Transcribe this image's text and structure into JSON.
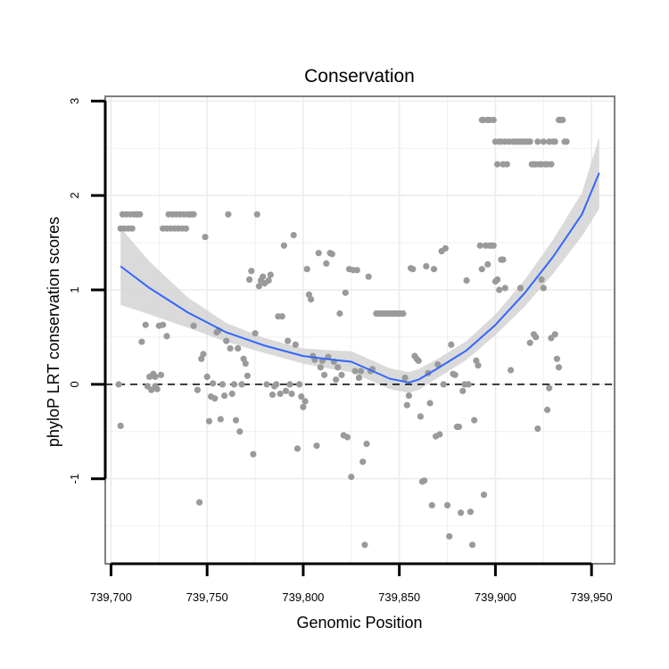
{
  "chart_data": {
    "type": "scatter",
    "title": "Conservation",
    "xlabel": "Genomic Position",
    "ylabel": "phyloP LRT conservation scores",
    "xlim": [
      739697,
      739962
    ],
    "ylim": [
      -1.9,
      3.05
    ],
    "x_ticks": [
      739700,
      739750,
      739800,
      739850,
      739900,
      739950
    ],
    "x_tick_labels": [
      "739,700",
      "739,750",
      "739,800",
      "739,850",
      "739,900",
      "739,950"
    ],
    "y_ticks": [
      -1,
      0,
      1,
      2,
      3
    ],
    "y_tick_labels": [
      "-1",
      "0",
      "1",
      "2",
      "3"
    ],
    "grid": true,
    "reference_line": {
      "y": 0,
      "style": "dashed"
    },
    "colors": {
      "points": "#9a9a9a",
      "smooth": "#3366ff",
      "band": "#d4d4d4",
      "grid": "#ececec",
      "border": "#7f7f7f"
    },
    "points": [
      [
        739704,
        0.0
      ],
      [
        739705,
        -0.44
      ],
      [
        739705,
        1.65
      ],
      [
        739706,
        1.8
      ],
      [
        739707,
        1.65
      ],
      [
        739708,
        1.8
      ],
      [
        739709,
        1.65
      ],
      [
        739710,
        1.8
      ],
      [
        739711,
        1.65
      ],
      [
        739712,
        1.8
      ],
      [
        739713,
        1.8
      ],
      [
        739714,
        1.8
      ],
      [
        739715,
        1.8
      ],
      [
        739716,
        0.45
      ],
      [
        739718,
        0.63
      ],
      [
        739719,
        -0.02
      ],
      [
        739720,
        0.08
      ],
      [
        739721,
        -0.06
      ],
      [
        739722,
        0.11
      ],
      [
        739723,
        0.08
      ],
      [
        739723,
        -0.02
      ],
      [
        739724,
        -0.05
      ],
      [
        739725,
        0.62
      ],
      [
        739726,
        0.1
      ],
      [
        739727,
        0.63
      ],
      [
        739729,
        0.51
      ],
      [
        739727,
        1.65
      ],
      [
        739729,
        1.65
      ],
      [
        739730,
        1.8
      ],
      [
        739731,
        1.65
      ],
      [
        739732,
        1.8
      ],
      [
        739733,
        1.65
      ],
      [
        739734,
        1.8
      ],
      [
        739735,
        1.65
      ],
      [
        739736,
        1.8
      ],
      [
        739737,
        1.65
      ],
      [
        739738,
        1.8
      ],
      [
        739739,
        1.65
      ],
      [
        739740,
        1.8
      ],
      [
        739741,
        1.8
      ],
      [
        739742,
        1.8
      ],
      [
        739743,
        1.8
      ],
      [
        739743,
        0.62
      ],
      [
        739745,
        -0.06
      ],
      [
        739746,
        -1.25
      ],
      [
        739747,
        0.27
      ],
      [
        739748,
        0.32
      ],
      [
        739749,
        1.56
      ],
      [
        739750,
        0.08
      ],
      [
        739751,
        -0.39
      ],
      [
        739752,
        -0.13
      ],
      [
        739753,
        0.01
      ],
      [
        739754,
        -0.15
      ],
      [
        739755,
        0.55
      ],
      [
        739756,
        0.57
      ],
      [
        739757,
        -0.37
      ],
      [
        739758,
        0.0
      ],
      [
        739759,
        -0.12
      ],
      [
        739760,
        0.46
      ],
      [
        739761,
        1.8
      ],
      [
        739762,
        0.38
      ],
      [
        739763,
        -0.1
      ],
      [
        739764,
        0.0
      ],
      [
        739765,
        -0.38
      ],
      [
        739766,
        0.38
      ],
      [
        739767,
        -0.5
      ],
      [
        739768,
        0.0
      ],
      [
        739769,
        0.27
      ],
      [
        739770,
        0.22
      ],
      [
        739771,
        0.09
      ],
      [
        739772,
        1.11
      ],
      [
        739773,
        1.2
      ],
      [
        739774,
        -0.74
      ],
      [
        739775,
        0.54
      ],
      [
        739776,
        1.8
      ],
      [
        739777,
        1.04
      ],
      [
        739778,
        1.1
      ],
      [
        739779,
        1.14
      ],
      [
        739780,
        1.07
      ],
      [
        739781,
        0.0
      ],
      [
        739782,
        1.1
      ],
      [
        739783,
        1.16
      ],
      [
        739784,
        -0.11
      ],
      [
        739785,
        -0.02
      ],
      [
        739786,
        0.0
      ],
      [
        739787,
        0.72
      ],
      [
        739788,
        -0.1
      ],
      [
        739789,
        0.72
      ],
      [
        739790,
        1.47
      ],
      [
        739791,
        -0.07
      ],
      [
        739792,
        0.46
      ],
      [
        739793,
        0.0
      ],
      [
        739794,
        -0.1
      ],
      [
        739795,
        1.58
      ],
      [
        739796,
        0.42
      ],
      [
        739797,
        -0.68
      ],
      [
        739798,
        0.0
      ],
      [
        739799,
        -0.13
      ],
      [
        739800,
        -0.24
      ],
      [
        739801,
        -0.18
      ],
      [
        739802,
        1.22
      ],
      [
        739803,
        0.95
      ],
      [
        739804,
        0.9
      ],
      [
        739805,
        0.3
      ],
      [
        739806,
        0.26
      ],
      [
        739807,
        -0.65
      ],
      [
        739808,
        1.39
      ],
      [
        739809,
        0.18
      ],
      [
        739810,
        0.25
      ],
      [
        739811,
        0.1
      ],
      [
        739812,
        1.28
      ],
      [
        739813,
        0.29
      ],
      [
        739814,
        1.39
      ],
      [
        739815,
        1.38
      ],
      [
        739816,
        0.24
      ],
      [
        739817,
        0.05
      ],
      [
        739818,
        0.18
      ],
      [
        739819,
        0.75
      ],
      [
        739820,
        0.1
      ],
      [
        739821,
        -0.54
      ],
      [
        739822,
        0.97
      ],
      [
        739823,
        -0.56
      ],
      [
        739824,
        1.22
      ],
      [
        739825,
        -0.98
      ],
      [
        739826,
        1.21
      ],
      [
        739827,
        0.14
      ],
      [
        739828,
        1.21
      ],
      [
        739829,
        0.07
      ],
      [
        739830,
        0.14
      ],
      [
        739831,
        -0.82
      ],
      [
        739832,
        -1.7
      ],
      [
        739833,
        -0.63
      ],
      [
        739834,
        1.14
      ],
      [
        739835,
        0.14
      ],
      [
        739836,
        0.16
      ],
      [
        739838,
        0.75
      ],
      [
        739839,
        0.75
      ],
      [
        739840,
        0.75
      ],
      [
        739841,
        0.75
      ],
      [
        739842,
        0.75
      ],
      [
        739843,
        0.75
      ],
      [
        739844,
        0.75
      ],
      [
        739845,
        0.75
      ],
      [
        739846,
        0.75
      ],
      [
        739847,
        0.75
      ],
      [
        739848,
        0.75
      ],
      [
        739849,
        0.75
      ],
      [
        739850,
        0.75
      ],
      [
        739851,
        0.75
      ],
      [
        739852,
        0.75
      ],
      [
        739853,
        0.07
      ],
      [
        739854,
        -0.22
      ],
      [
        739855,
        -0.12
      ],
      [
        739856,
        1.23
      ],
      [
        739857,
        1.22
      ],
      [
        739858,
        0.3
      ],
      [
        739859,
        0.27
      ],
      [
        739860,
        0.25
      ],
      [
        739861,
        -0.34
      ],
      [
        739862,
        -1.03
      ],
      [
        739863,
        -1.02
      ],
      [
        739864,
        1.25
      ],
      [
        739865,
        0.12
      ],
      [
        739866,
        -0.2
      ],
      [
        739867,
        -1.28
      ],
      [
        739868,
        1.22
      ],
      [
        739869,
        -0.55
      ],
      [
        739870,
        0.21
      ],
      [
        739871,
        -0.53
      ],
      [
        739872,
        1.41
      ],
      [
        739873,
        0.0
      ],
      [
        739874,
        1.44
      ],
      [
        739875,
        -1.28
      ],
      [
        739876,
        -1.61
      ],
      [
        739877,
        0.42
      ],
      [
        739878,
        0.11
      ],
      [
        739879,
        0.1
      ],
      [
        739880,
        -0.45
      ],
      [
        739881,
        -0.45
      ],
      [
        739882,
        -1.36
      ],
      [
        739883,
        -0.07
      ],
      [
        739884,
        0.0
      ],
      [
        739885,
        1.1
      ],
      [
        739886,
        0.0
      ],
      [
        739887,
        -1.35
      ],
      [
        739888,
        -1.7
      ],
      [
        739889,
        -0.38
      ],
      [
        739890,
        0.25
      ],
      [
        739891,
        0.2
      ],
      [
        739892,
        1.47
      ],
      [
        739893,
        1.22
      ],
      [
        739894,
        -1.17
      ],
      [
        739895,
        1.47
      ],
      [
        739896,
        1.27
      ],
      [
        739897,
        1.47
      ],
      [
        739898,
        1.47
      ],
      [
        739899,
        1.47
      ],
      [
        739900,
        1.09
      ],
      [
        739901,
        1.11
      ],
      [
        739902,
        1.0
      ],
      [
        739903,
        1.32
      ],
      [
        739904,
        1.32
      ],
      [
        739905,
        1.02
      ],
      [
        739893,
        2.8
      ],
      [
        739894,
        2.8
      ],
      [
        739896,
        2.8
      ],
      [
        739897,
        2.8
      ],
      [
        739899,
        2.8
      ],
      [
        739900,
        2.57
      ],
      [
        739901,
        2.33
      ],
      [
        739902,
        2.57
      ],
      [
        739903,
        2.57
      ],
      [
        739904,
        2.33
      ],
      [
        739905,
        2.57
      ],
      [
        739906,
        2.33
      ],
      [
        739907,
        2.57
      ],
      [
        739909,
        2.57
      ],
      [
        739910,
        2.57
      ],
      [
        739911,
        2.57
      ],
      [
        739912,
        2.57
      ],
      [
        739913,
        2.57
      ],
      [
        739914,
        2.57
      ],
      [
        739915,
        2.57
      ],
      [
        739916,
        2.57
      ],
      [
        739917,
        2.57
      ],
      [
        739918,
        2.57
      ],
      [
        739919,
        2.33
      ],
      [
        739920,
        2.33
      ],
      [
        739921,
        2.33
      ],
      [
        739922,
        2.57
      ],
      [
        739923,
        2.33
      ],
      [
        739924,
        2.33
      ],
      [
        739925,
        2.57
      ],
      [
        739926,
        2.33
      ],
      [
        739927,
        2.33
      ],
      [
        739928,
        2.57
      ],
      [
        739929,
        2.33
      ],
      [
        739930,
        2.57
      ],
      [
        739931,
        2.57
      ],
      [
        739933,
        2.8
      ],
      [
        739934,
        2.8
      ],
      [
        739935,
        2.8
      ],
      [
        739936,
        2.57
      ],
      [
        739937,
        2.57
      ],
      [
        739908,
        0.15
      ],
      [
        739913,
        1.02
      ],
      [
        739918,
        0.44
      ],
      [
        739920,
        0.53
      ],
      [
        739921,
        0.5
      ],
      [
        739922,
        -0.47
      ],
      [
        739924,
        1.11
      ],
      [
        739925,
        1.02
      ],
      [
        739927,
        -0.27
      ],
      [
        739928,
        -0.04
      ],
      [
        739929,
        0.49
      ],
      [
        739931,
        0.53
      ],
      [
        739932,
        0.27
      ],
      [
        739933,
        0.18
      ]
    ],
    "smooth": {
      "x": [
        739705,
        739720,
        739740,
        739760,
        739780,
        739800,
        739815,
        739825,
        739835,
        739845,
        739855,
        739860,
        739870,
        739885,
        739900,
        739915,
        739930,
        739945,
        739954
      ],
      "y": [
        1.25,
        1.02,
        0.76,
        0.55,
        0.41,
        0.3,
        0.26,
        0.24,
        0.15,
        0.06,
        0.02,
        0.05,
        0.17,
        0.36,
        0.63,
        0.96,
        1.35,
        1.8,
        2.24
      ],
      "lower": [
        0.84,
        0.74,
        0.6,
        0.45,
        0.33,
        0.22,
        0.16,
        0.13,
        0.04,
        -0.05,
        -0.09,
        -0.06,
        0.07,
        0.26,
        0.52,
        0.82,
        1.17,
        1.57,
        1.86
      ],
      "upper": [
        1.66,
        1.3,
        0.92,
        0.65,
        0.49,
        0.38,
        0.36,
        0.35,
        0.26,
        0.17,
        0.13,
        0.16,
        0.27,
        0.46,
        0.74,
        1.1,
        1.53,
        2.03,
        2.62
      ]
    }
  }
}
